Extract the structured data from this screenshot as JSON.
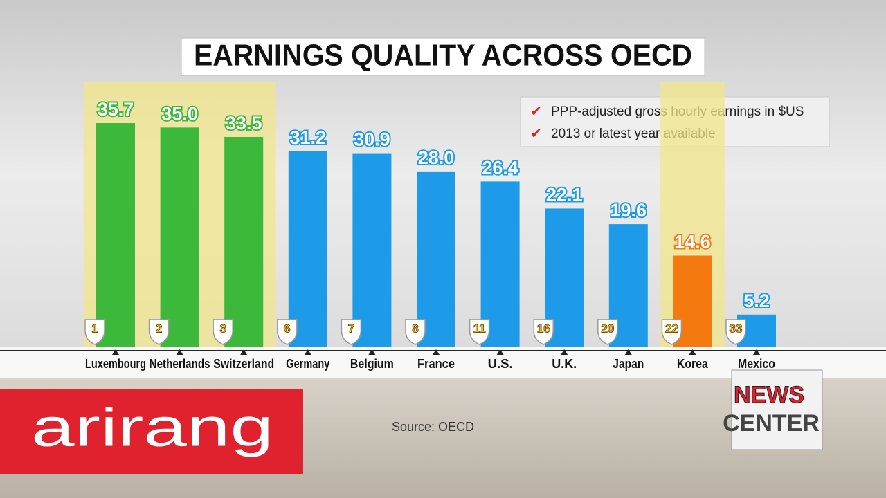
{
  "chart_data": {
    "type": "bar",
    "title": "EARNINGS QUALITY ACROSS OECD",
    "notes": [
      "PPP-adjusted gross hourly earnings in $US",
      "2013 or latest year available"
    ],
    "source": "Source: OECD",
    "categories": [
      "Luxembourg",
      "Netherlands",
      "Switzerland",
      "Germany",
      "Belgium",
      "France",
      "U.S.",
      "U.K.",
      "Japan",
      "Korea",
      "Mexico"
    ],
    "values": [
      35.7,
      35.0,
      33.5,
      31.2,
      30.9,
      28.0,
      26.4,
      22.1,
      19.6,
      14.6,
      5.2
    ],
    "value_labels": [
      "35.7",
      "35.0",
      "33.5",
      "31.2",
      "30.9",
      "28.0",
      "26.4",
      "22.1",
      "19.6",
      "14.6",
      "5.2"
    ],
    "ranks": [
      1,
      2,
      3,
      6,
      7,
      8,
      11,
      16,
      20,
      22,
      33
    ],
    "colors": [
      "#3cb83a",
      "#3cb83a",
      "#3cb83a",
      "#1e9be8",
      "#1e9be8",
      "#1e9be8",
      "#1e9be8",
      "#1e9be8",
      "#1e9be8",
      "#f47a10",
      "#1e9be8"
    ],
    "highlighted": [
      true,
      true,
      true,
      false,
      false,
      false,
      false,
      false,
      false,
      true,
      false
    ]
  },
  "branding": {
    "logo": "arirang",
    "show": [
      "NEWS",
      "CENTER"
    ]
  }
}
